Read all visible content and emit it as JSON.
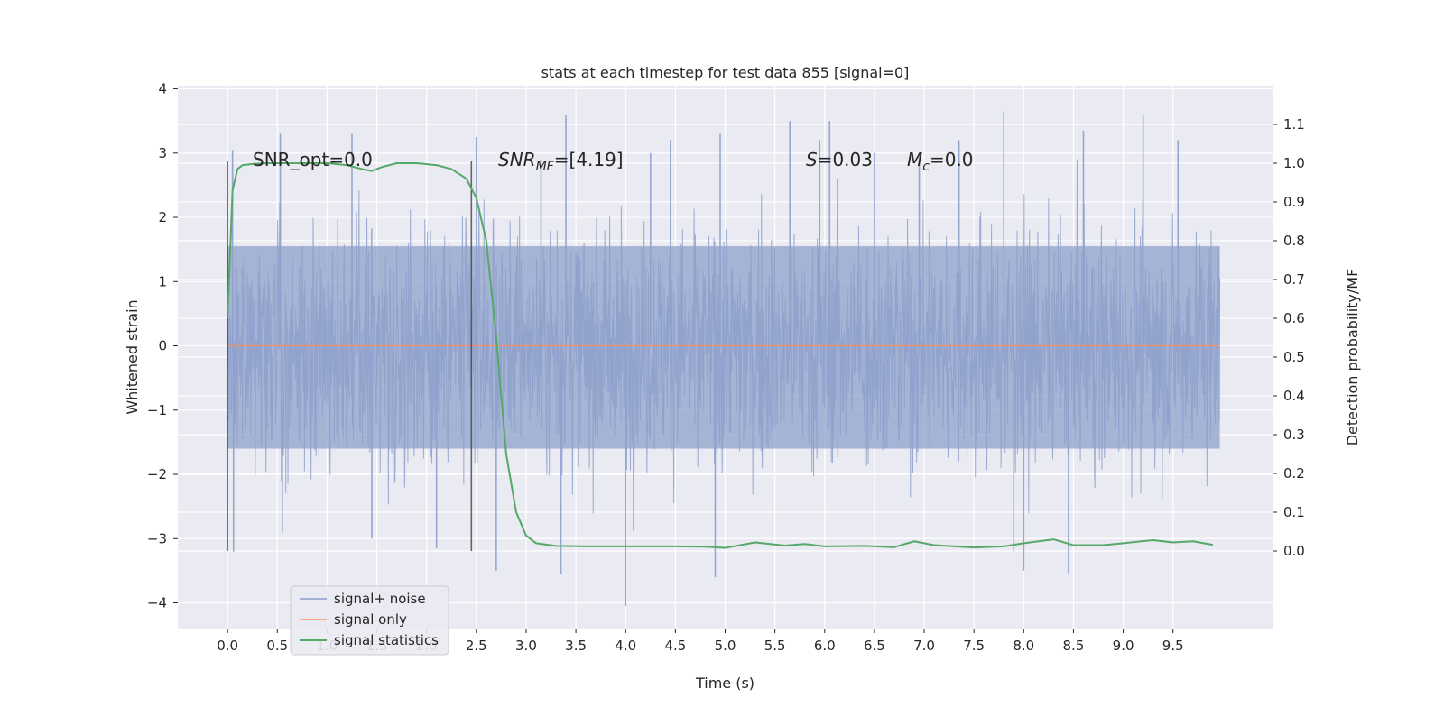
{
  "chart_data": {
    "type": "line",
    "title": "stats at each timestep for test data 855 [signal=0]",
    "xlabel": "Time (s)",
    "ylabel": "Whitened strain",
    "y2label": "Detection probability/MF",
    "xlim": [
      -0.5,
      10.5
    ],
    "ylim": [
      -4.4,
      4.05
    ],
    "y2lim": [
      -0.2,
      1.2
    ],
    "xticks": [
      "0.0",
      "0.5",
      "1.0",
      "1.5",
      "2.0",
      "2.5",
      "3.0",
      "3.5",
      "4.0",
      "4.5",
      "5.0",
      "5.5",
      "6.0",
      "6.5",
      "7.0",
      "7.5",
      "8.0",
      "8.5",
      "9.0",
      "9.5"
    ],
    "yticks": [
      "−4",
      "−3",
      "−2",
      "−1",
      "0",
      "1",
      "2",
      "3",
      "4"
    ],
    "y2ticks": [
      "0.0",
      "0.1",
      "0.2",
      "0.3",
      "0.4",
      "0.5",
      "0.6",
      "0.7",
      "0.8",
      "0.9",
      "1.0",
      "1.1"
    ],
    "grid": true,
    "legend_position": "lower-left",
    "annotations": {
      "snr_opt": "SNR_opt=0.0",
      "snr_mf_base": "SNR",
      "snr_mf_sub": "MF",
      "snr_mf_rest": "=[4.19]",
      "s_label": "S",
      "s_rest": "=0.03",
      "mc_base": "M",
      "mc_sub": "c",
      "mc_rest": "=0.0"
    },
    "vlines": [
      0.0,
      2.45
    ],
    "series": [
      {
        "name": "signal+ noise",
        "color": "#8da0cb",
        "description_range": [
          -4.1,
          3.65
        ],
        "x_start": 0.0,
        "x_end": 9.6,
        "spikes": [
          [
            0.05,
            3.05
          ],
          [
            0.06,
            -3.2
          ],
          [
            0.53,
            3.3
          ],
          [
            0.55,
            -2.9
          ],
          [
            1.25,
            3.3
          ],
          [
            1.45,
            -3.0
          ],
          [
            2.1,
            -3.15
          ],
          [
            2.5,
            3.25
          ],
          [
            2.7,
            -3.5
          ],
          [
            3.15,
            2.9
          ],
          [
            3.4,
            3.6
          ],
          [
            3.35,
            -3.55
          ],
          [
            4.0,
            -4.05
          ],
          [
            4.25,
            3.0
          ],
          [
            4.45,
            3.2
          ],
          [
            4.95,
            3.3
          ],
          [
            4.9,
            -3.6
          ],
          [
            5.65,
            3.5
          ],
          [
            5.95,
            3.2
          ],
          [
            6.05,
            3.5
          ],
          [
            6.5,
            3.0
          ],
          [
            6.95,
            3.0
          ],
          [
            7.35,
            3.2
          ],
          [
            7.8,
            3.65
          ],
          [
            8.0,
            -3.5
          ],
          [
            8.45,
            -3.55
          ],
          [
            8.6,
            3.35
          ],
          [
            9.2,
            3.6
          ],
          [
            9.55,
            3.2
          ],
          [
            7.9,
            -3.2
          ]
        ]
      },
      {
        "name": "signal only",
        "color": "#fc8d62",
        "value": 0.0
      },
      {
        "name": "signal statistics",
        "color": "#55a868",
        "x": [
          0.0,
          0.05,
          0.1,
          0.15,
          0.25,
          0.4,
          0.6,
          0.8,
          1.0,
          1.2,
          1.35,
          1.45,
          1.55,
          1.7,
          1.9,
          2.1,
          2.25,
          2.4,
          2.5,
          2.6,
          2.7,
          2.8,
          2.9,
          3.0,
          3.1,
          3.3,
          3.6,
          4.0,
          4.5,
          4.8,
          5.0,
          5.3,
          5.6,
          5.8,
          6.0,
          6.4,
          6.7,
          6.9,
          7.1,
          7.5,
          7.8,
          8.0,
          8.3,
          8.5,
          8.8,
          9.0,
          9.3,
          9.5,
          9.7,
          9.9
        ],
        "y": [
          0.6,
          0.93,
          0.985,
          0.995,
          0.998,
          1.0,
          1.0,
          1.0,
          1.0,
          0.995,
          0.985,
          0.98,
          0.99,
          1.0,
          1.0,
          0.995,
          0.985,
          0.96,
          0.91,
          0.8,
          0.55,
          0.25,
          0.1,
          0.04,
          0.02,
          0.013,
          0.012,
          0.012,
          0.012,
          0.011,
          0.008,
          0.022,
          0.014,
          0.018,
          0.012,
          0.013,
          0.01,
          0.025,
          0.015,
          0.009,
          0.012,
          0.02,
          0.03,
          0.015,
          0.015,
          0.02,
          0.028,
          0.022,
          0.025,
          0.016
        ]
      }
    ]
  }
}
